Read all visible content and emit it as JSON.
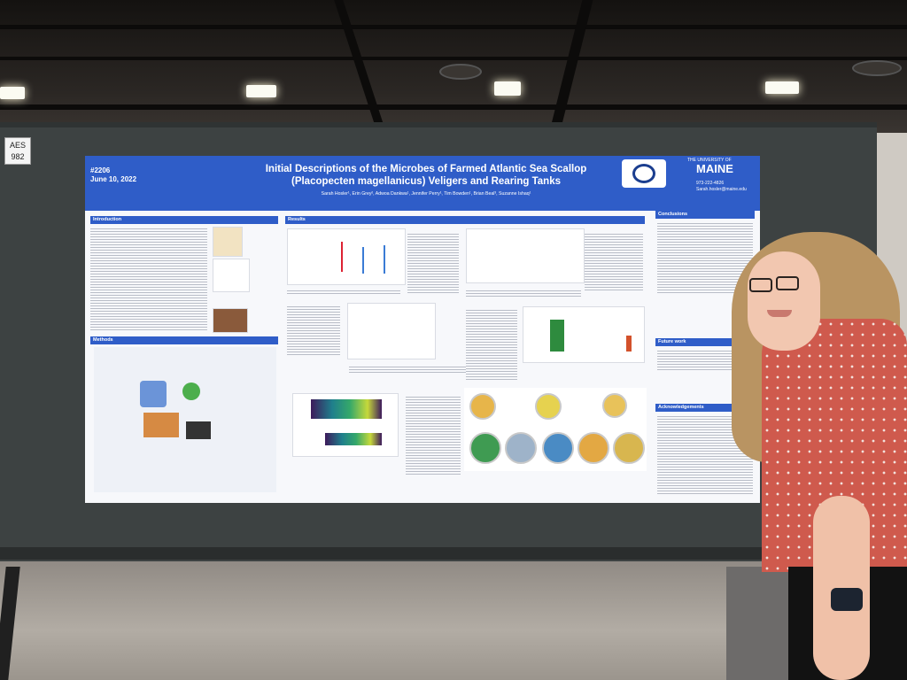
{
  "booth_sign": {
    "line1": "AES",
    "line2": "982"
  },
  "poster": {
    "number": "#2206",
    "date": "June 10, 2022",
    "title_line1": "Initial Descriptions of the Microbes of Farmed Atlantic Sea Scallop",
    "title_line2": "(Placopecten magellanicus) Veligers and Rearing Tanks",
    "authors": "Sarah Hosler¹, Erin Grey², Adwoa Dankwa¹, Jennifer Perry¹, Tim Bowden¹, Brian Beal³, Suzanne Ishaq¹",
    "university": "THE UNIVERSITY OF",
    "university_name": "MAINE",
    "contact_phone": "973-222-4826",
    "contact_email": "Sarah.hosler@maine.edu",
    "sections": {
      "introduction": "Introduction",
      "methods": "Methods",
      "results": "Results",
      "conclusions": "Conclusions",
      "future_work": "Future work",
      "acknowledgements": "Acknowledgements"
    }
  },
  "colors": {
    "poster_blue": "#2f5dc8",
    "board": "#3d4242",
    "shirt": "#cf5a4d",
    "hair": "#b99462"
  }
}
